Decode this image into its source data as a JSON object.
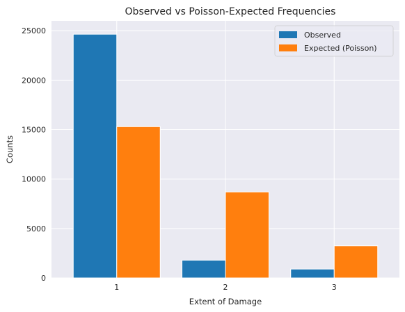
{
  "chart_data": {
    "type": "bar",
    "title": "Observed vs Poisson-Expected Frequencies",
    "xlabel": "Extent of Damage",
    "ylabel": "Counts",
    "categories": [
      "1",
      "2",
      "3"
    ],
    "series": [
      {
        "name": "Observed",
        "color": "#1f77b4",
        "values": [
          24650,
          1800,
          900
        ]
      },
      {
        "name": "Expected (Poisson)",
        "color": "#ff7f0e",
        "values": [
          15300,
          8700,
          3250
        ]
      }
    ],
    "ylim": [
      0,
      26000
    ],
    "yticks": [
      0,
      5000,
      10000,
      15000,
      20000,
      25000
    ],
    "grid": true,
    "legend_position": "top-right",
    "background_color": "#eaeaf2",
    "grid_color": "#ffffff"
  }
}
